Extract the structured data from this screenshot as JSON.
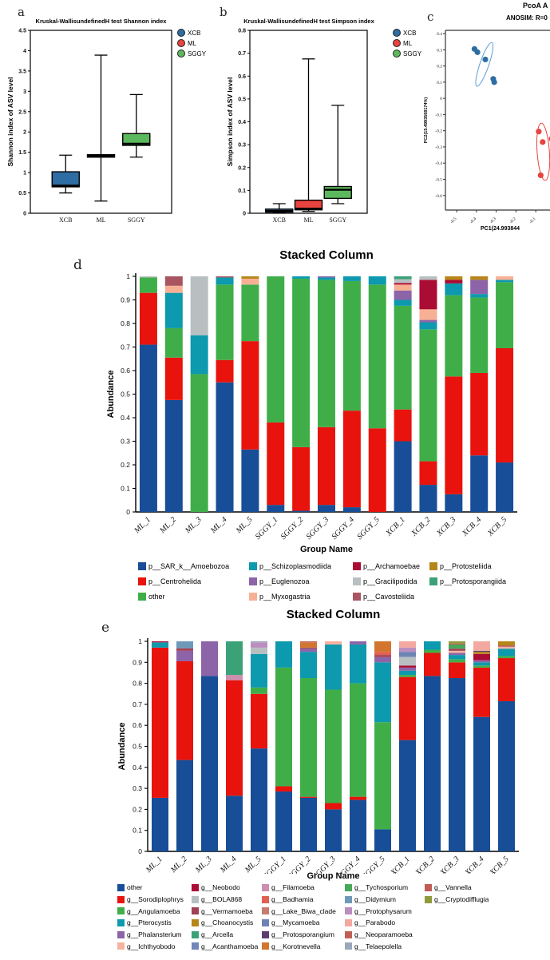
{
  "figure": {
    "labels": {
      "a": "a",
      "b": "b",
      "c": "c",
      "d": "d",
      "e": "e"
    }
  },
  "chart_data": [
    {
      "id": "a",
      "type": "box",
      "title": "Kruskal-WallisundefinedH test Shannon index",
      "ylabel": "Shannon index of ASV level",
      "ylim": [
        0,
        4.5
      ],
      "ytick_step": 0.5,
      "categories": [
        "XCB",
        "ML",
        "SGGY"
      ],
      "legend": [
        {
          "label": "XCB",
          "color": "#2e6da4"
        },
        {
          "label": "ML",
          "color": "#e8433f"
        },
        {
          "label": "SGGY",
          "color": "#5cb85c"
        }
      ],
      "boxes": [
        {
          "group": "XCB",
          "color": "#2e6da4",
          "low": 0.5,
          "q1": 0.65,
          "median": 0.68,
          "q3": 1.02,
          "high": 1.43
        },
        {
          "group": "ML",
          "color": "#e8433f",
          "low": 0.3,
          "q1": 1.38,
          "median": 1.41,
          "q3": 1.44,
          "high": 3.89
        },
        {
          "group": "SGGY",
          "color": "#5cb85c",
          "low": 1.38,
          "q1": 1.67,
          "median": 1.71,
          "q3": 1.96,
          "high": 2.92
        }
      ]
    },
    {
      "id": "b",
      "type": "box",
      "title": "Kruskal-WallisundefinedH test Simpson index",
      "ylabel": "Simpson index of ASV level",
      "ylim": [
        0,
        0.8
      ],
      "ytick_step": 0.1,
      "categories": [
        "XCB",
        "ML",
        "SGGY"
      ],
      "legend": [
        {
          "label": "XCB",
          "color": "#2e6da4"
        },
        {
          "label": "ML",
          "color": "#e8433f"
        },
        {
          "label": "SGGY",
          "color": "#5cb85c"
        }
      ],
      "boxes": [
        {
          "group": "XCB",
          "color": "#2e6da4",
          "low": 0.002,
          "q1": 0.005,
          "median": 0.01,
          "q3": 0.018,
          "high": 0.042
        },
        {
          "group": "ML",
          "color": "#e8433f",
          "low": 0.008,
          "q1": 0.015,
          "median": 0.02,
          "q3": 0.057,
          "high": 0.675
        },
        {
          "group": "SGGY",
          "color": "#5cb85c",
          "low": 0.042,
          "q1": 0.065,
          "median": 0.103,
          "q3": 0.117,
          "high": 0.472
        }
      ]
    },
    {
      "id": "c",
      "type": "scatter",
      "title": "PcoA A",
      "subtitle": "ANOSIM: R=0",
      "xlabel": "PC1(24.993844",
      "ylabel": "PC2(15.4993568174%)",
      "xlim": [
        -0.557,
        0.38
      ],
      "ylim": [
        -0.69,
        0.42
      ],
      "xticks": [
        -0.5,
        -0.4,
        -0.3,
        -0.2,
        -0.1,
        0,
        0.1
      ],
      "yticks": [
        0.4,
        0.3,
        0.2,
        0.1,
        0,
        -0.1,
        -0.2,
        -0.3,
        -0.4,
        -0.5,
        -0.6
      ],
      "series": [
        {
          "name": "XCB",
          "color": "#2e6da4",
          "ellipse_color": "#5b9bd5",
          "points": [
            [
              -0.41,
              0.305
            ],
            [
              -0.395,
              0.285
            ],
            [
              -0.355,
              0.24
            ],
            [
              -0.315,
              0.12
            ],
            [
              -0.31,
              0.1
            ]
          ],
          "ellipse": {
            "cx": -0.36,
            "cy": 0.21,
            "rx": 0.04,
            "ry": 0.143,
            "rot": 19
          }
        },
        {
          "name": "ML",
          "color": "#e8433f",
          "ellipse_color": "#e8433f",
          "points": [
            [
              -0.085,
              -0.205
            ],
            [
              -0.02,
              -0.25
            ],
            [
              -0.065,
              -0.27
            ],
            [
              -0.075,
              -0.475
            ]
          ],
          "ellipse": {
            "cx": -0.062,
            "cy": -0.33,
            "rx": 0.055,
            "ry": 0.177,
            "rot": -4
          }
        }
      ]
    },
    {
      "id": "d",
      "type": "stacked_bar",
      "title": "Stacked Column",
      "ylabel": "Abundance",
      "xlabel": "Group Name",
      "ylim": [
        0,
        1
      ],
      "ytick_step": 0.1,
      "legend_rows": 3,
      "categories": [
        "ML_1",
        "ML_2",
        "ML_3",
        "ML_4",
        "ML_5",
        "SGGY_1",
        "SGGY_2",
        "SGGY_3",
        "SGGY_4",
        "SGGY_5",
        "XCB_1",
        "XCB_2",
        "XCB_3",
        "XCB_4",
        "XCB_5"
      ],
      "series": [
        {
          "name": "p__SAR_k__Amoebozoa",
          "color": "#174e97",
          "values": [
            0.71,
            0.475,
            0,
            0.55,
            0.265,
            0.03,
            0.005,
            0.03,
            0.02,
            0,
            0.3,
            0.115,
            0.075,
            0.24,
            0.21
          ]
        },
        {
          "name": "p__Centrohelida",
          "color": "#e8130c",
          "values": [
            0.22,
            0.18,
            0,
            0.095,
            0.46,
            0.35,
            0.27,
            0.33,
            0.41,
            0.355,
            0.135,
            0.1,
            0.5,
            0.35,
            0.485
          ]
        },
        {
          "name": "other",
          "color": "#3fae49",
          "values": [
            0.065,
            0.125,
            0.585,
            0.32,
            0.24,
            0.62,
            0.715,
            0.625,
            0.55,
            0.61,
            0.44,
            0.56,
            0.345,
            0.32,
            0.28
          ]
        },
        {
          "name": "p__Schizoplasmodiida",
          "color": "#0d99ae",
          "values": [
            0,
            0.15,
            0.165,
            0.03,
            0,
            0,
            0.01,
            0.01,
            0.02,
            0.035,
            0.025,
            0.03,
            0.05,
            0.015,
            0.01
          ]
        },
        {
          "name": "p__Euglenozoa",
          "color": "#8d64a8",
          "values": [
            0,
            0,
            0,
            0,
            0,
            0,
            0,
            0.005,
            0,
            0,
            0.04,
            0.01,
            0,
            0.06,
            0
          ]
        },
        {
          "name": "p__Myxogastria",
          "color": "#f8b095",
          "values": [
            0,
            0.03,
            0,
            0,
            0.025,
            0,
            0,
            0,
            0,
            0,
            0.025,
            0.045,
            0,
            0,
            0.015
          ]
        },
        {
          "name": "p__Archamoebae",
          "color": "#ab0c34",
          "values": [
            0,
            0,
            0,
            0,
            0,
            0,
            0,
            0,
            0,
            0,
            0.007,
            0.125,
            0.015,
            0,
            0
          ]
        },
        {
          "name": "p__Gracilipodida",
          "color": "#b8bfc1",
          "values": [
            0.005,
            0,
            0.25,
            0,
            0,
            0,
            0,
            0,
            0,
            0,
            0.016,
            0.015,
            0,
            0,
            0
          ]
        },
        {
          "name": "p__Cavosteliida",
          "color": "#a85561",
          "values": [
            0,
            0.04,
            0,
            0.005,
            0,
            0,
            0,
            0,
            0,
            0,
            0,
            0,
            0,
            0,
            0
          ]
        },
        {
          "name": "p__Protosteliida",
          "color": "#b78618",
          "values": [
            0,
            0,
            0,
            0,
            0.01,
            0,
            0,
            0,
            0,
            0,
            0,
            0,
            0.015,
            0.015,
            0
          ]
        },
        {
          "name": "p__Protosporangiida",
          "color": "#3ba277",
          "values": [
            0,
            0,
            0,
            0,
            0,
            0,
            0,
            0,
            0,
            0,
            0.012,
            0,
            0,
            0,
            0
          ]
        }
      ],
      "legend_order": [
        "p__SAR_k__Amoebozoa",
        "p__Centrohelida",
        "other",
        "p__Schizoplasmodiida",
        "p__Euglenozoa",
        "p__Myxogastria",
        "p__Archamoebae",
        "p__Gracilipodida",
        "p__Cavosteliida",
        "p__Protosteliida",
        "p__Protosporangiida"
      ]
    },
    {
      "id": "e",
      "type": "stacked_bar",
      "title": "Stacked Column",
      "ylabel": "Abundance",
      "xlabel": "Group Name",
      "ylim": [
        0,
        1
      ],
      "ytick_step": 0.1,
      "legend_rows": 6,
      "categories": [
        "ML_1",
        "ML_2",
        "ML_3",
        "ML_4",
        "ML_5",
        "SGGY_1",
        "SGGY_2",
        "SGGY_3",
        "SGGY_4",
        "SGGY_5",
        "XCB_1",
        "XCB_2",
        "XCB_3",
        "XCB_4",
        "XCB_5"
      ],
      "series": [
        {
          "name": "other",
          "color": "#174e97",
          "values": [
            0.255,
            0.435,
            0.835,
            0.265,
            0.49,
            0.285,
            0.255,
            0.2,
            0.245,
            0.105,
            0.53,
            0.835,
            0.825,
            0.64,
            0.715
          ]
        },
        {
          "name": "g__Sorodiplophrys",
          "color": "#e8130c",
          "values": [
            0.715,
            0.47,
            0,
            0.55,
            0.26,
            0.025,
            0.005,
            0.03,
            0.015,
            0,
            0.3,
            0.11,
            0.075,
            0.235,
            0.205
          ]
        },
        {
          "name": "g__Angulamoeba",
          "color": "#3fae49",
          "values": [
            0,
            0,
            0,
            0,
            0.03,
            0.565,
            0.565,
            0.54,
            0.54,
            0.51,
            0.01,
            0.015,
            0.015,
            0.01,
            0.01
          ]
        },
        {
          "name": "g__Pterocystis",
          "color": "#0d99ae",
          "values": [
            0.025,
            0,
            0,
            0,
            0.16,
            0.125,
            0.125,
            0.215,
            0.185,
            0.285,
            0.02,
            0.04,
            0.02,
            0.015,
            0.035
          ]
        },
        {
          "name": "g__Filamoeba",
          "color": "#cd8eb0",
          "values": [
            0,
            0,
            0,
            0.025,
            0,
            0,
            0,
            0,
            0,
            0,
            0,
            0,
            0,
            0,
            0
          ]
        },
        {
          "name": "g__Phalansterium",
          "color": "#8d64a8",
          "values": [
            0,
            0.05,
            0.165,
            0,
            0,
            0,
            0.015,
            0,
            0.015,
            0.025,
            0.015,
            0,
            0.01,
            0.01,
            0
          ]
        },
        {
          "name": "g__Ichthyobodo",
          "color": "#f6b29e",
          "values": [
            0,
            0,
            0,
            0,
            0,
            0,
            0,
            0.015,
            0,
            0,
            0,
            0,
            0.01,
            0,
            0.01
          ]
        },
        {
          "name": "g__Neobodo",
          "color": "#ab0c34",
          "values": [
            0.005,
            0,
            0,
            0,
            0,
            0,
            0,
            0,
            0,
            0,
            0.01,
            0,
            0,
            0.03,
            0
          ]
        },
        {
          "name": "g__BOLA868",
          "color": "#b8bfc1",
          "values": [
            0,
            0,
            0,
            0,
            0.03,
            0,
            0,
            0,
            0,
            0,
            0.04,
            0,
            0,
            0,
            0
          ]
        },
        {
          "name": "g__Vermamoeba",
          "color": "#a24055",
          "values": [
            0,
            0.012,
            0,
            0,
            0,
            0,
            0.005,
            0,
            0,
            0.01,
            0,
            0,
            0.01,
            0,
            0.005
          ]
        },
        {
          "name": "g__Choanocystis",
          "color": "#b78618",
          "values": [
            0,
            0,
            0,
            0,
            0,
            0,
            0,
            0,
            0,
            0,
            0,
            0,
            0,
            0.01,
            0.02
          ]
        },
        {
          "name": "g__Arcella",
          "color": "#3ba277",
          "values": [
            0,
            0,
            0,
            0.16,
            0,
            0,
            0,
            0,
            0,
            0,
            0,
            0,
            0,
            0,
            0
          ]
        },
        {
          "name": "g__Acanthamoeba",
          "color": "#7386b7",
          "values": [
            0,
            0,
            0,
            0,
            0,
            0,
            0,
            0,
            0,
            0,
            0.005,
            0,
            0,
            0,
            0
          ]
        },
        {
          "name": "g__Badhamia",
          "color": "#e16052",
          "values": [
            0,
            0,
            0,
            0,
            0,
            0,
            0,
            0,
            0,
            0.015,
            0,
            0,
            0,
            0,
            0
          ]
        },
        {
          "name": "g__Lake_Biwa_clade",
          "color": "#c87b70",
          "values": [
            0,
            0,
            0,
            0,
            0,
            0,
            0,
            0,
            0,
            0,
            0,
            0,
            0,
            0,
            0
          ]
        },
        {
          "name": "g__Mycamoeba",
          "color": "#6d83b3",
          "values": [
            0,
            0,
            0,
            0,
            0,
            0,
            0,
            0,
            0,
            0,
            0.02,
            0,
            0,
            0,
            0
          ]
        },
        {
          "name": "g__Protosporangium",
          "color": "#5d3d6e",
          "values": [
            0,
            0,
            0,
            0,
            0,
            0,
            0,
            0,
            0,
            0,
            0,
            0,
            0,
            0.005,
            0
          ]
        },
        {
          "name": "g__Korotnevella",
          "color": "#d2752f",
          "values": [
            0,
            0,
            0,
            0,
            0,
            0,
            0.025,
            0,
            0,
            0.05,
            0,
            0,
            0,
            0,
            0
          ]
        },
        {
          "name": "g__Tychosporium",
          "color": "#47a85a",
          "values": [
            0,
            0,
            0,
            0,
            0,
            0,
            0,
            0,
            0,
            0,
            0,
            0,
            0.02,
            0,
            0
          ]
        },
        {
          "name": "g__Didymium",
          "color": "#6e9aba",
          "values": [
            0,
            0.033,
            0,
            0,
            0,
            0,
            0,
            0,
            0,
            0,
            0,
            0,
            0,
            0,
            0
          ]
        },
        {
          "name": "g__Protophysarum",
          "color": "#bb8ec0",
          "values": [
            0,
            0,
            0,
            0,
            0.025,
            0,
            0,
            0,
            0,
            0,
            0.02,
            0,
            0,
            0,
            0
          ]
        },
        {
          "name": "g__Parabodo",
          "color": "#f3a99f",
          "values": [
            0,
            0,
            0,
            0,
            0,
            0,
            0,
            0,
            0,
            0,
            0.03,
            0,
            0,
            0.045,
            0
          ]
        },
        {
          "name": "g__Neoparamoeba",
          "color": "#bf6057",
          "values": [
            0,
            0,
            0,
            0,
            0,
            0,
            0.005,
            0,
            0,
            0,
            0,
            0,
            0,
            0,
            0
          ]
        },
        {
          "name": "g__Telaepolella",
          "color": "#9aa8ba",
          "values": [
            0,
            0,
            0,
            0,
            0.005,
            0,
            0,
            0,
            0,
            0,
            0,
            0,
            0,
            0,
            0
          ]
        },
        {
          "name": "g__Vannella",
          "color": "#c25b54",
          "values": [
            0,
            0,
            0,
            0,
            0,
            0,
            0,
            0,
            0,
            0,
            0,
            0,
            0.005,
            0,
            0
          ]
        },
        {
          "name": "g__Cryptodifflugia",
          "color": "#8f9b3a",
          "values": [
            0,
            0,
            0,
            0,
            0,
            0,
            0,
            0,
            0,
            0,
            0,
            0,
            0.01,
            0,
            0
          ]
        }
      ],
      "legend_order": [
        "other",
        "g__Sorodiplophrys",
        "g__Angulamoeba",
        "g__Pterocystis",
        "g__Phalansterium",
        "g__Ichthyobodo",
        "g__Neobodo",
        "g__BOLA868",
        "g__Vermamoeba",
        "g__Choanocystis",
        "g__Arcella",
        "g__Acanthamoeba",
        "g__Filamoeba",
        "g__Badhamia",
        "g__Lake_Biwa_clade",
        "g__Mycamoeba",
        "g__Protosporangium",
        "g__Korotnevella",
        "g__Tychosporium",
        "g__Didymium",
        "g__Protophysarum",
        "g__Parabodo",
        "g__Neoparamoeba",
        "g__Telaepolella",
        "g__Vannella",
        "g__Cryptodifflugia"
      ]
    }
  ]
}
